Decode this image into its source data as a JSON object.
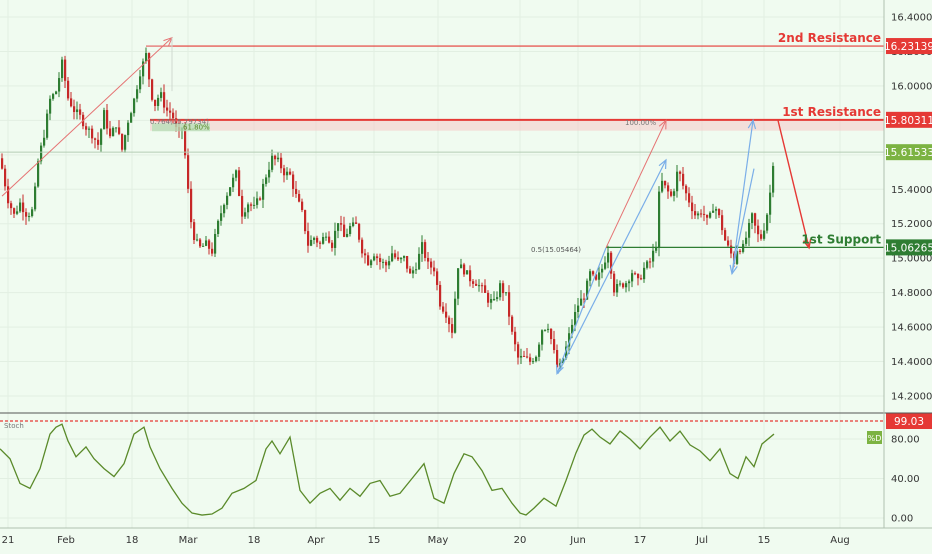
{
  "chart_data": {
    "type": "candlestick",
    "main_axis": {
      "y_range": [
        14.1,
        16.5
      ],
      "y_ticks": [
        "16.40000",
        "16.20000",
        "16.00000",
        "15.80000",
        "15.60000",
        "15.40000",
        "15.20000",
        "15.00000",
        "14.80000",
        "14.60000",
        "14.40000",
        "14.20000"
      ],
      "y_tick_values": [
        16.4,
        16.2,
        16.0,
        15.8,
        15.6,
        15.4,
        15.2,
        15.0,
        14.8,
        14.6,
        14.4,
        14.2
      ]
    },
    "x_labels": [
      "21",
      "Feb",
      "18",
      "Mar",
      "18",
      "Apr",
      "15",
      "May",
      "20",
      "Jun",
      "17",
      "Jul",
      "15",
      "Aug"
    ],
    "price_path": [
      [
        0,
        15.58
      ],
      [
        8,
        15.34
      ],
      [
        14,
        15.25
      ],
      [
        20,
        15.32
      ],
      [
        27,
        15.25
      ],
      [
        33,
        15.28
      ],
      [
        38,
        15.56
      ],
      [
        44,
        15.72
      ],
      [
        50,
        15.92
      ],
      [
        56,
        15.97
      ],
      [
        62,
        16.13
      ],
      [
        68,
        15.93
      ],
      [
        74,
        15.86
      ],
      [
        80,
        15.82
      ],
      [
        86,
        15.76
      ],
      [
        92,
        15.72
      ],
      [
        98,
        15.66
      ],
      [
        104,
        15.84
      ],
      [
        110,
        15.7
      ],
      [
        116,
        15.78
      ],
      [
        122,
        15.63
      ],
      [
        128,
        15.8
      ],
      [
        134,
        15.92
      ],
      [
        140,
        16.08
      ],
      [
        146,
        16.18
      ],
      [
        150,
        16.0
      ],
      [
        154,
        15.88
      ],
      [
        160,
        15.96
      ],
      [
        166,
        15.86
      ],
      [
        172,
        15.84
      ],
      [
        178,
        15.7
      ],
      [
        182,
        15.76
      ],
      [
        186,
        15.54
      ],
      [
        190,
        15.24
      ],
      [
        195,
        15.1
      ],
      [
        200,
        15.06
      ],
      [
        206,
        15.08
      ],
      [
        212,
        15.04
      ],
      [
        218,
        15.2
      ],
      [
        224,
        15.33
      ],
      [
        230,
        15.42
      ],
      [
        236,
        15.49
      ],
      [
        242,
        15.26
      ],
      [
        248,
        15.32
      ],
      [
        254,
        15.29
      ],
      [
        260,
        15.36
      ],
      [
        266,
        15.48
      ],
      [
        272,
        15.58
      ],
      [
        278,
        15.56
      ],
      [
        284,
        15.5
      ],
      [
        290,
        15.48
      ],
      [
        296,
        15.36
      ],
      [
        302,
        15.26
      ],
      [
        308,
        15.08
      ],
      [
        314,
        15.12
      ],
      [
        320,
        15.08
      ],
      [
        326,
        15.15
      ],
      [
        332,
        15.08
      ],
      [
        338,
        15.22
      ],
      [
        344,
        15.12
      ],
      [
        350,
        15.18
      ],
      [
        356,
        15.19
      ],
      [
        362,
        15.05
      ],
      [
        368,
        14.98
      ],
      [
        374,
        15.03
      ],
      [
        380,
        14.98
      ],
      [
        386,
        14.96
      ],
      [
        392,
        15.03
      ],
      [
        398,
        14.98
      ],
      [
        404,
        15.0
      ],
      [
        410,
        14.9
      ],
      [
        416,
        14.96
      ],
      [
        422,
        15.07
      ],
      [
        428,
        14.96
      ],
      [
        434,
        14.94
      ],
      [
        440,
        14.74
      ],
      [
        446,
        14.68
      ],
      [
        452,
        14.58
      ],
      [
        458,
        14.96
      ],
      [
        464,
        14.93
      ],
      [
        470,
        14.88
      ],
      [
        476,
        14.86
      ],
      [
        482,
        14.82
      ],
      [
        488,
        14.76
      ],
      [
        494,
        14.74
      ],
      [
        500,
        14.84
      ],
      [
        506,
        14.78
      ],
      [
        512,
        14.56
      ],
      [
        518,
        14.42
      ],
      [
        524,
        14.42
      ],
      [
        530,
        14.4
      ],
      [
        536,
        14.44
      ],
      [
        542,
        14.59
      ],
      [
        548,
        14.61
      ],
      [
        554,
        14.45
      ],
      [
        558,
        14.34
      ],
      [
        562,
        14.4
      ],
      [
        566,
        14.48
      ],
      [
        572,
        14.62
      ],
      [
        578,
        14.73
      ],
      [
        584,
        14.78
      ],
      [
        590,
        14.91
      ],
      [
        596,
        14.86
      ],
      [
        602,
        14.94
      ],
      [
        608,
        15.05
      ],
      [
        614,
        14.82
      ],
      [
        620,
        14.84
      ],
      [
        626,
        14.86
      ],
      [
        632,
        14.92
      ],
      [
        638,
        14.86
      ],
      [
        644,
        14.94
      ],
      [
        650,
        14.98
      ],
      [
        656,
        15.08
      ],
      [
        660,
        15.46
      ],
      [
        666,
        15.4
      ],
      [
        672,
        15.35
      ],
      [
        678,
        15.52
      ],
      [
        684,
        15.4
      ],
      [
        690,
        15.32
      ],
      [
        696,
        15.24
      ],
      [
        702,
        15.28
      ],
      [
        708,
        15.2
      ],
      [
        714,
        15.32
      ],
      [
        720,
        15.22
      ],
      [
        726,
        15.08
      ],
      [
        730,
        15.04
      ],
      [
        734,
        14.98
      ],
      [
        738,
        15.08
      ],
      [
        742,
        15.04
      ],
      [
        746,
        15.12
      ],
      [
        752,
        15.24
      ],
      [
        756,
        15.16
      ],
      [
        760,
        15.1
      ],
      [
        766,
        15.22
      ],
      [
        770,
        15.38
      ],
      [
        774,
        15.62
      ]
    ],
    "stoch_axis": {
      "range": [
        0,
        100
      ],
      "ticks": [
        "80.00",
        "40.00",
        "0.00"
      ],
      "tick_values": [
        80,
        40,
        0
      ]
    },
    "stoch_path": [
      [
        0,
        70
      ],
      [
        10,
        60
      ],
      [
        20,
        35
      ],
      [
        30,
        30
      ],
      [
        40,
        50
      ],
      [
        50,
        85
      ],
      [
        56,
        92
      ],
      [
        62,
        95
      ],
      [
        68,
        78
      ],
      [
        76,
        62
      ],
      [
        86,
        72
      ],
      [
        94,
        60
      ],
      [
        104,
        50
      ],
      [
        114,
        42
      ],
      [
        124,
        55
      ],
      [
        134,
        85
      ],
      [
        144,
        92
      ],
      [
        150,
        72
      ],
      [
        160,
        50
      ],
      [
        172,
        30
      ],
      [
        182,
        15
      ],
      [
        192,
        5
      ],
      [
        202,
        3
      ],
      [
        212,
        4
      ],
      [
        222,
        10
      ],
      [
        232,
        25
      ],
      [
        244,
        30
      ],
      [
        256,
        38
      ],
      [
        266,
        70
      ],
      [
        272,
        78
      ],
      [
        280,
        65
      ],
      [
        290,
        82
      ],
      [
        300,
        28
      ],
      [
        310,
        15
      ],
      [
        320,
        25
      ],
      [
        330,
        30
      ],
      [
        340,
        18
      ],
      [
        350,
        30
      ],
      [
        360,
        22
      ],
      [
        370,
        35
      ],
      [
        380,
        38
      ],
      [
        390,
        22
      ],
      [
        400,
        25
      ],
      [
        412,
        40
      ],
      [
        424,
        55
      ],
      [
        434,
        20
      ],
      [
        444,
        15
      ],
      [
        454,
        45
      ],
      [
        464,
        65
      ],
      [
        472,
        62
      ],
      [
        482,
        48
      ],
      [
        492,
        28
      ],
      [
        502,
        30
      ],
      [
        512,
        15
      ],
      [
        520,
        5
      ],
      [
        526,
        3
      ],
      [
        534,
        10
      ],
      [
        544,
        20
      ],
      [
        556,
        12
      ],
      [
        566,
        38
      ],
      [
        576,
        66
      ],
      [
        584,
        84
      ],
      [
        592,
        90
      ],
      [
        600,
        82
      ],
      [
        610,
        75
      ],
      [
        620,
        88
      ],
      [
        630,
        80
      ],
      [
        640,
        70
      ],
      [
        650,
        82
      ],
      [
        660,
        92
      ],
      [
        670,
        78
      ],
      [
        680,
        88
      ],
      [
        690,
        74
      ],
      [
        700,
        68
      ],
      [
        710,
        58
      ],
      [
        720,
        70
      ],
      [
        730,
        45
      ],
      [
        738,
        40
      ],
      [
        746,
        62
      ],
      [
        754,
        52
      ],
      [
        762,
        75
      ],
      [
        774,
        85
      ]
    ],
    "levels": [
      {
        "label": "2nd Resistance",
        "value_label": "16.23139",
        "value": 16.23139,
        "color": "#e53935"
      },
      {
        "label": "1st Resistance",
        "value_label": "15.80311",
        "value": 15.80311,
        "color": "#e53935"
      },
      {
        "label": "1st Support",
        "value_label": "15.06265",
        "value": 15.06265,
        "color": "#2e7d32"
      }
    ],
    "current_price": {
      "value_label": "15.61533",
      "value": 15.61533
    },
    "stoch_level": {
      "value_label": "99.03",
      "value": 99.03
    },
    "annotations": {
      "fib_upper_a": "0.764(15.79734)",
      "fib_upper_b": "61.80%",
      "fib_100": "100.00%",
      "fib_mid": "0.5(15.05464)",
      "stoch_label": "Stoch",
      "stoch_badge": "%D"
    },
    "colors": {
      "background": "#f0fbf0",
      "up": "#2e7d32",
      "down": "#c62828",
      "stoch": "#5a8a2a",
      "resistance": "#e53935",
      "support": "#2e7d32",
      "blue_arrow": "#7aaee8",
      "red_arrow": "#e57373"
    }
  }
}
